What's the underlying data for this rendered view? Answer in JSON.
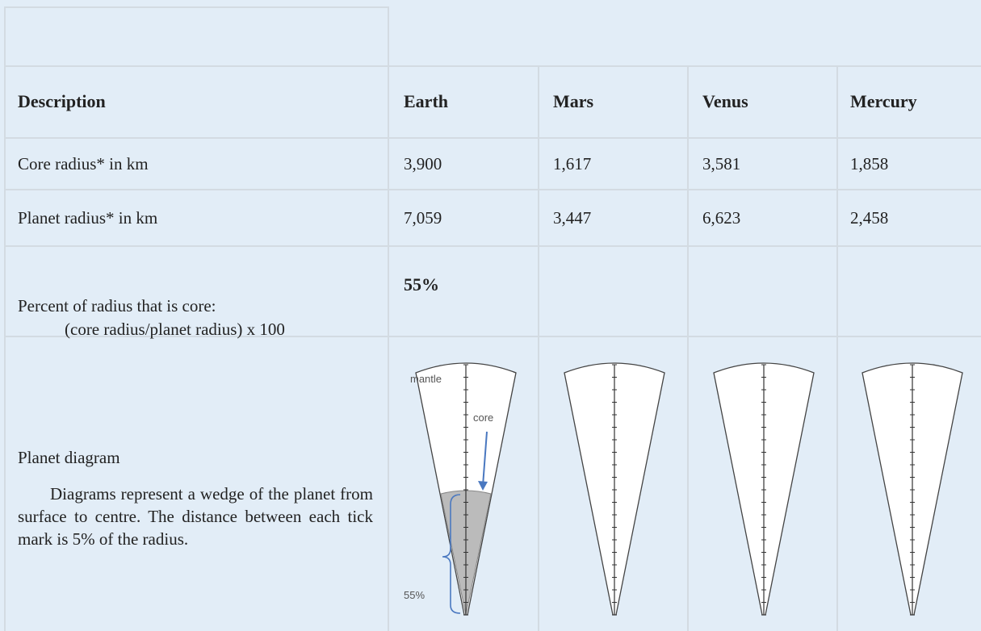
{
  "table": {
    "header": [
      "Description",
      "Earth",
      "Mars",
      "Venus",
      "Mercury"
    ],
    "rows": [
      {
        "label": "Core radius* in km",
        "values": [
          "3,900",
          "1,617",
          "3,581",
          "1,858"
        ]
      },
      {
        "label": "Planet radius* in km",
        "values": [
          "7,059",
          "3,447",
          "6,623",
          "2,458"
        ]
      },
      {
        "label": "Percent of radius that is core:",
        "formula": "(core radius/planet radius) x 100",
        "values": [
          "55%"
        ]
      },
      {
        "label": "Planet diagram",
        "note": "Diagrams represent a wedge of the planet from surface to centre. The distance between each tick mark is 5% of the radius.",
        "diagram_labels": [
          "mantle",
          "core",
          "55%"
        ]
      }
    ]
  }
}
